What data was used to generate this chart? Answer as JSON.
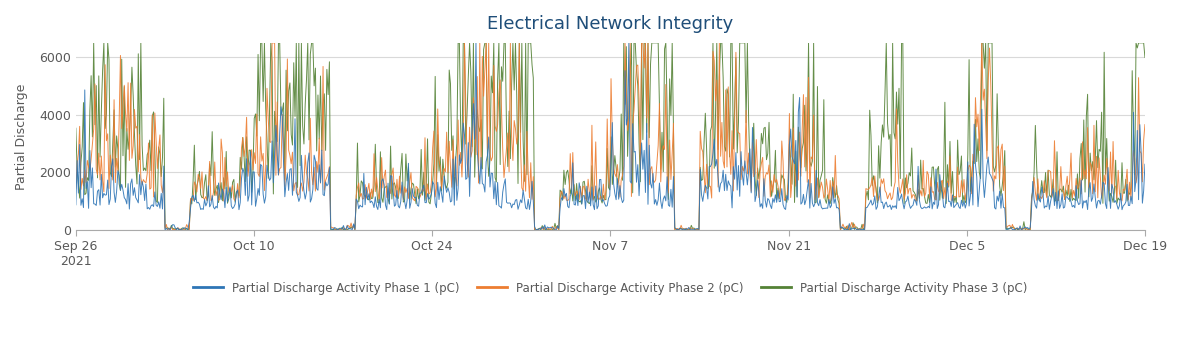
{
  "title": "Electrical Network Integrity",
  "ylabel": "Partial Discharge",
  "xlabel": "",
  "ylim": [
    0,
    6500
  ],
  "yticks": [
    0,
    2000,
    4000,
    6000
  ],
  "legend_labels": [
    "Partial Discharge Activity Phase 1 (pC)",
    "Partial Discharge Activity Phase 2 (pC)",
    "Partial Discharge Activity Phase 3 (pC)"
  ],
  "colors": [
    "#2e75b6",
    "#ed7d31",
    "#548235"
  ],
  "background_color": "#ffffff",
  "grid_color": "#d9d9d9",
  "title_color": "#1f4e79",
  "axis_label_color": "#595959",
  "tick_label_color": "#595959",
  "xtick_labels": [
    "Sep 26\n2021",
    "Oct 10",
    "Oct 24",
    "Nov 7",
    "Nov 21",
    "Dec 5",
    "Dec 19"
  ],
  "xtick_positions": [
    0,
    14,
    28,
    42,
    56,
    70,
    84
  ],
  "n_points": 840,
  "seed": 42
}
